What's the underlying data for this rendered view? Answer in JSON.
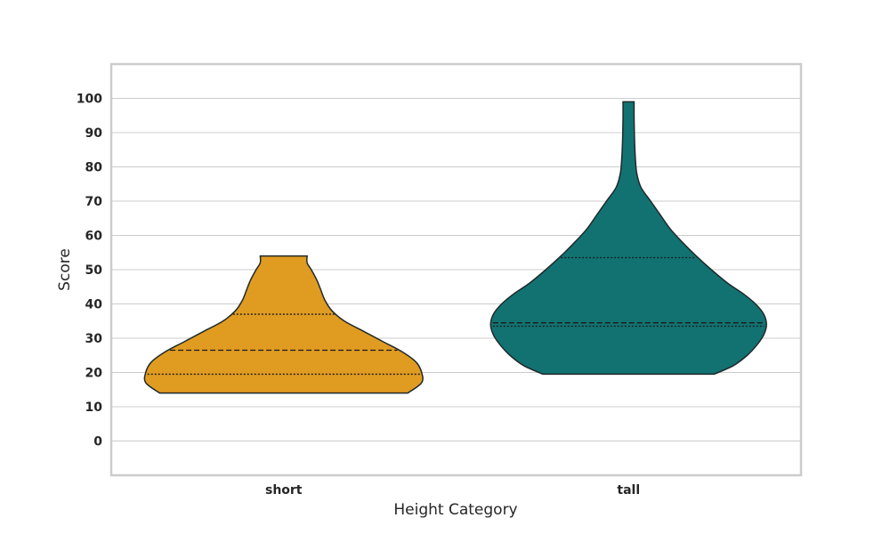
{
  "chart_data": {
    "type": "violin",
    "title": "",
    "xlabel": "Height Category",
    "ylabel": "Score",
    "ylim": [
      -10,
      110
    ],
    "yticks": [
      0,
      10,
      20,
      30,
      40,
      50,
      60,
      70,
      80,
      90,
      100
    ],
    "grid": true,
    "categories": [
      "short",
      "tall"
    ],
    "colors": [
      "#e09b21",
      "#127272"
    ],
    "violins": [
      {
        "category": "short",
        "min": 14,
        "q1": 19.5,
        "median": 26.5,
        "q3": 37,
        "max": 54,
        "density": [
          [
            14,
            0.9
          ],
          [
            17,
            1.0
          ],
          [
            20,
            1.0
          ],
          [
            23,
            0.96
          ],
          [
            26,
            0.86
          ],
          [
            29,
            0.72
          ],
          [
            32,
            0.58
          ],
          [
            35,
            0.44
          ],
          [
            38,
            0.35
          ],
          [
            41,
            0.3
          ],
          [
            44,
            0.27
          ],
          [
            47,
            0.24
          ],
          [
            50,
            0.2
          ],
          [
            52,
            0.17
          ],
          [
            54,
            0.17
          ]
        ]
      },
      {
        "category": "tall",
        "min": 19.5,
        "q1": 33.5,
        "median": 34.5,
        "q3": 53.5,
        "max": 99,
        "density": [
          [
            19.5,
            0.62
          ],
          [
            22,
            0.76
          ],
          [
            25,
            0.86
          ],
          [
            28,
            0.93
          ],
          [
            31,
            0.98
          ],
          [
            34,
            1.0
          ],
          [
            37,
            0.98
          ],
          [
            40,
            0.92
          ],
          [
            43,
            0.83
          ],
          [
            46,
            0.72
          ],
          [
            50,
            0.6
          ],
          [
            54,
            0.49
          ],
          [
            58,
            0.39
          ],
          [
            62,
            0.3
          ],
          [
            66,
            0.23
          ],
          [
            70,
            0.16
          ],
          [
            74,
            0.09
          ],
          [
            78,
            0.06
          ],
          [
            82,
            0.05
          ],
          [
            86,
            0.045
          ],
          [
            90,
            0.042
          ],
          [
            95,
            0.04
          ],
          [
            99,
            0.04
          ]
        ]
      }
    ]
  }
}
